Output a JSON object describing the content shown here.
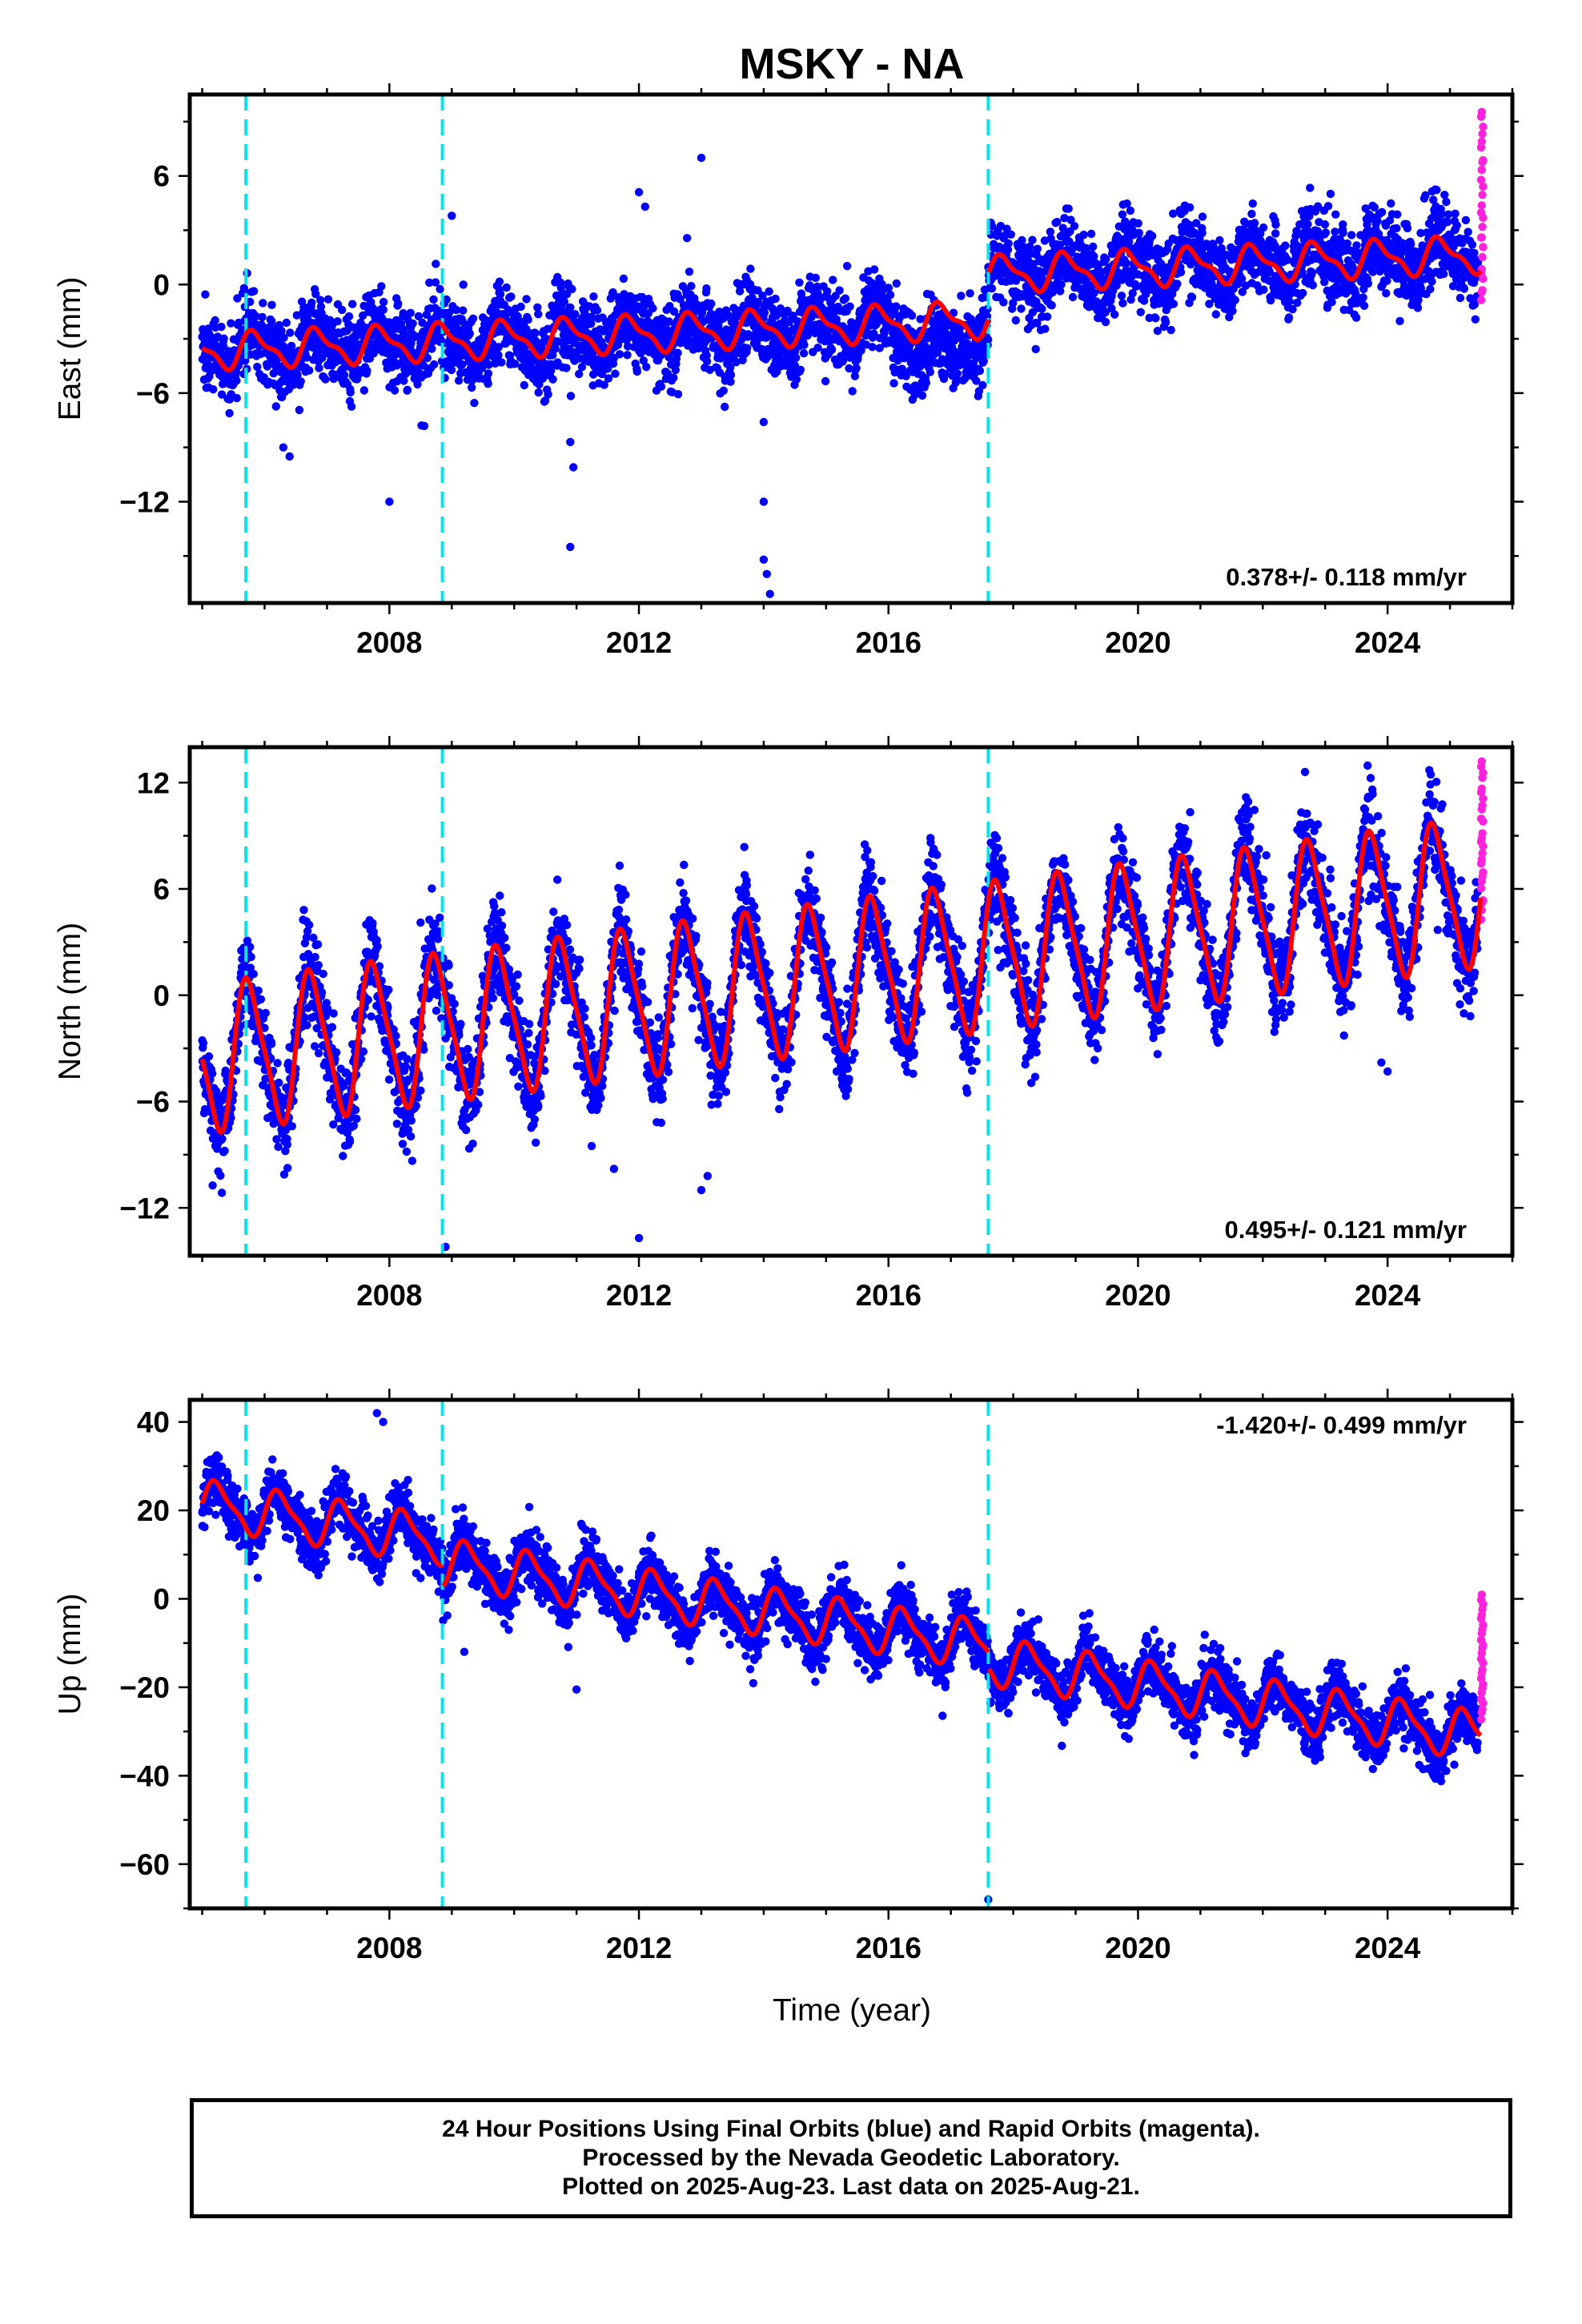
{
  "chart_data": {
    "title": "MSKY - NA",
    "type": "scatter",
    "xlabel": "Time (year)",
    "xlim": [
      2004.8,
      2026.0
    ],
    "x_ticks": [
      2008,
      2012,
      2016,
      2020,
      2024
    ],
    "x_minor_tick_step": 1,
    "colors": {
      "final_orbits": "#0000ff",
      "rapid_orbits": "#ff22dd",
      "model": "#ff0000",
      "equipment_change": "#00e5ee"
    },
    "equipment_changes": [
      2005.7,
      2008.85,
      2017.6
    ],
    "data_start": 2005.0,
    "final_end": 2025.45,
    "rapid_end": 2025.64,
    "panels": [
      {
        "name": "east",
        "ylabel": "East (mm)",
        "ylim": [
          -17.6,
          10.5
        ],
        "y_ticks": [
          6,
          0,
          -6,
          -12
        ],
        "y_minor_step": 3,
        "rate_label": "0.378+/- 0.118 mm/yr",
        "rate_position": "bottom-right",
        "model": {
          "base": -3.7,
          "rate": 0.14,
          "annual_amplitude": 0.9,
          "annual_phase": 0.6,
          "semiannual_amplitude": 0.35,
          "offsets": [
            {
              "year": 2017.6,
              "value": 2.5
            }
          ]
        },
        "scatter_std": 1.1,
        "rapid_range": [
          -1,
          9.5
        ],
        "outliers": [
          [
            2006.3,
            -9.0
          ],
          [
            2006.4,
            -9.5
          ],
          [
            2008.0,
            -12.0
          ],
          [
            2009.0,
            3.8
          ],
          [
            2010.9,
            -8.7
          ],
          [
            2010.95,
            -10.1
          ],
          [
            2010.9,
            -14.5
          ],
          [
            2012.0,
            5.1
          ],
          [
            2012.1,
            4.3
          ],
          [
            2013.0,
            7.0
          ],
          [
            2014.0,
            -7.6
          ],
          [
            2014.0,
            -12.0
          ],
          [
            2014.0,
            -15.2
          ],
          [
            2014.05,
            -16.0
          ],
          [
            2014.1,
            -17.1
          ]
        ]
      },
      {
        "name": "north",
        "ylabel": "North (mm)",
        "ylim": [
          -14.7,
          14.0
        ],
        "y_ticks": [
          12,
          6,
          0,
          -6,
          -12
        ],
        "y_minor_step": 3,
        "rate_label": "0.495+/- 0.121 mm/yr",
        "rate_position": "bottom-right",
        "model": {
          "base": -3.6,
          "rate": 0.46,
          "annual_amplitude": 4.0,
          "annual_phase": 0.5,
          "semiannual_amplitude": 0.8,
          "offsets": []
        },
        "scatter_std": 1.3,
        "rapid_range": [
          4.5,
          13.2
        ],
        "outliers": [
          [
            2008.9,
            -14.2
          ],
          [
            2012.0,
            -13.7
          ],
          [
            2011.6,
            -9.8
          ],
          [
            2013.0,
            -11.0
          ],
          [
            2013.1,
            -10.2
          ],
          [
            2023.9,
            -3.8
          ],
          [
            2024.0,
            -4.3
          ],
          [
            2008.5,
            4.1
          ]
        ]
      },
      {
        "name": "up",
        "ylabel": "Up (mm)",
        "ylim": [
          -70.0,
          45.0
        ],
        "y_ticks": [
          40,
          20,
          0,
          -20,
          -40,
          -60
        ],
        "y_minor_step": 10,
        "rate_label": "-1.420+/- 0.499 mm/yr",
        "rate_position": "top-right",
        "model": {
          "base": 21.5,
          "rate": -2.15,
          "annual_amplitude": 5.0,
          "annual_phase": 0.0,
          "semiannual_amplitude": 1.5,
          "offsets": [
            {
              "year": 2008.85,
              "value": -5.0
            },
            {
              "year": 2017.6,
              "value": -3.5
            }
          ]
        },
        "scatter_std": 3.2,
        "rapid_range": [
          -27,
          1
        ],
        "outliers": [
          [
            2007.8,
            42.0
          ],
          [
            2007.9,
            40.0
          ],
          [
            2011.0,
            -20.5
          ],
          [
            2017.6,
            -68.0
          ],
          [
            2009.2,
            -12.0
          ]
        ]
      }
    ]
  },
  "caption": {
    "line1": "24 Hour Positions Using Final Orbits (blue) and Rapid Orbits (magenta).",
    "line2": "Processed by the Nevada Geodetic Laboratory.",
    "line3": "Plotted on 2025-Aug-23. Last data on 2025-Aug-21."
  }
}
